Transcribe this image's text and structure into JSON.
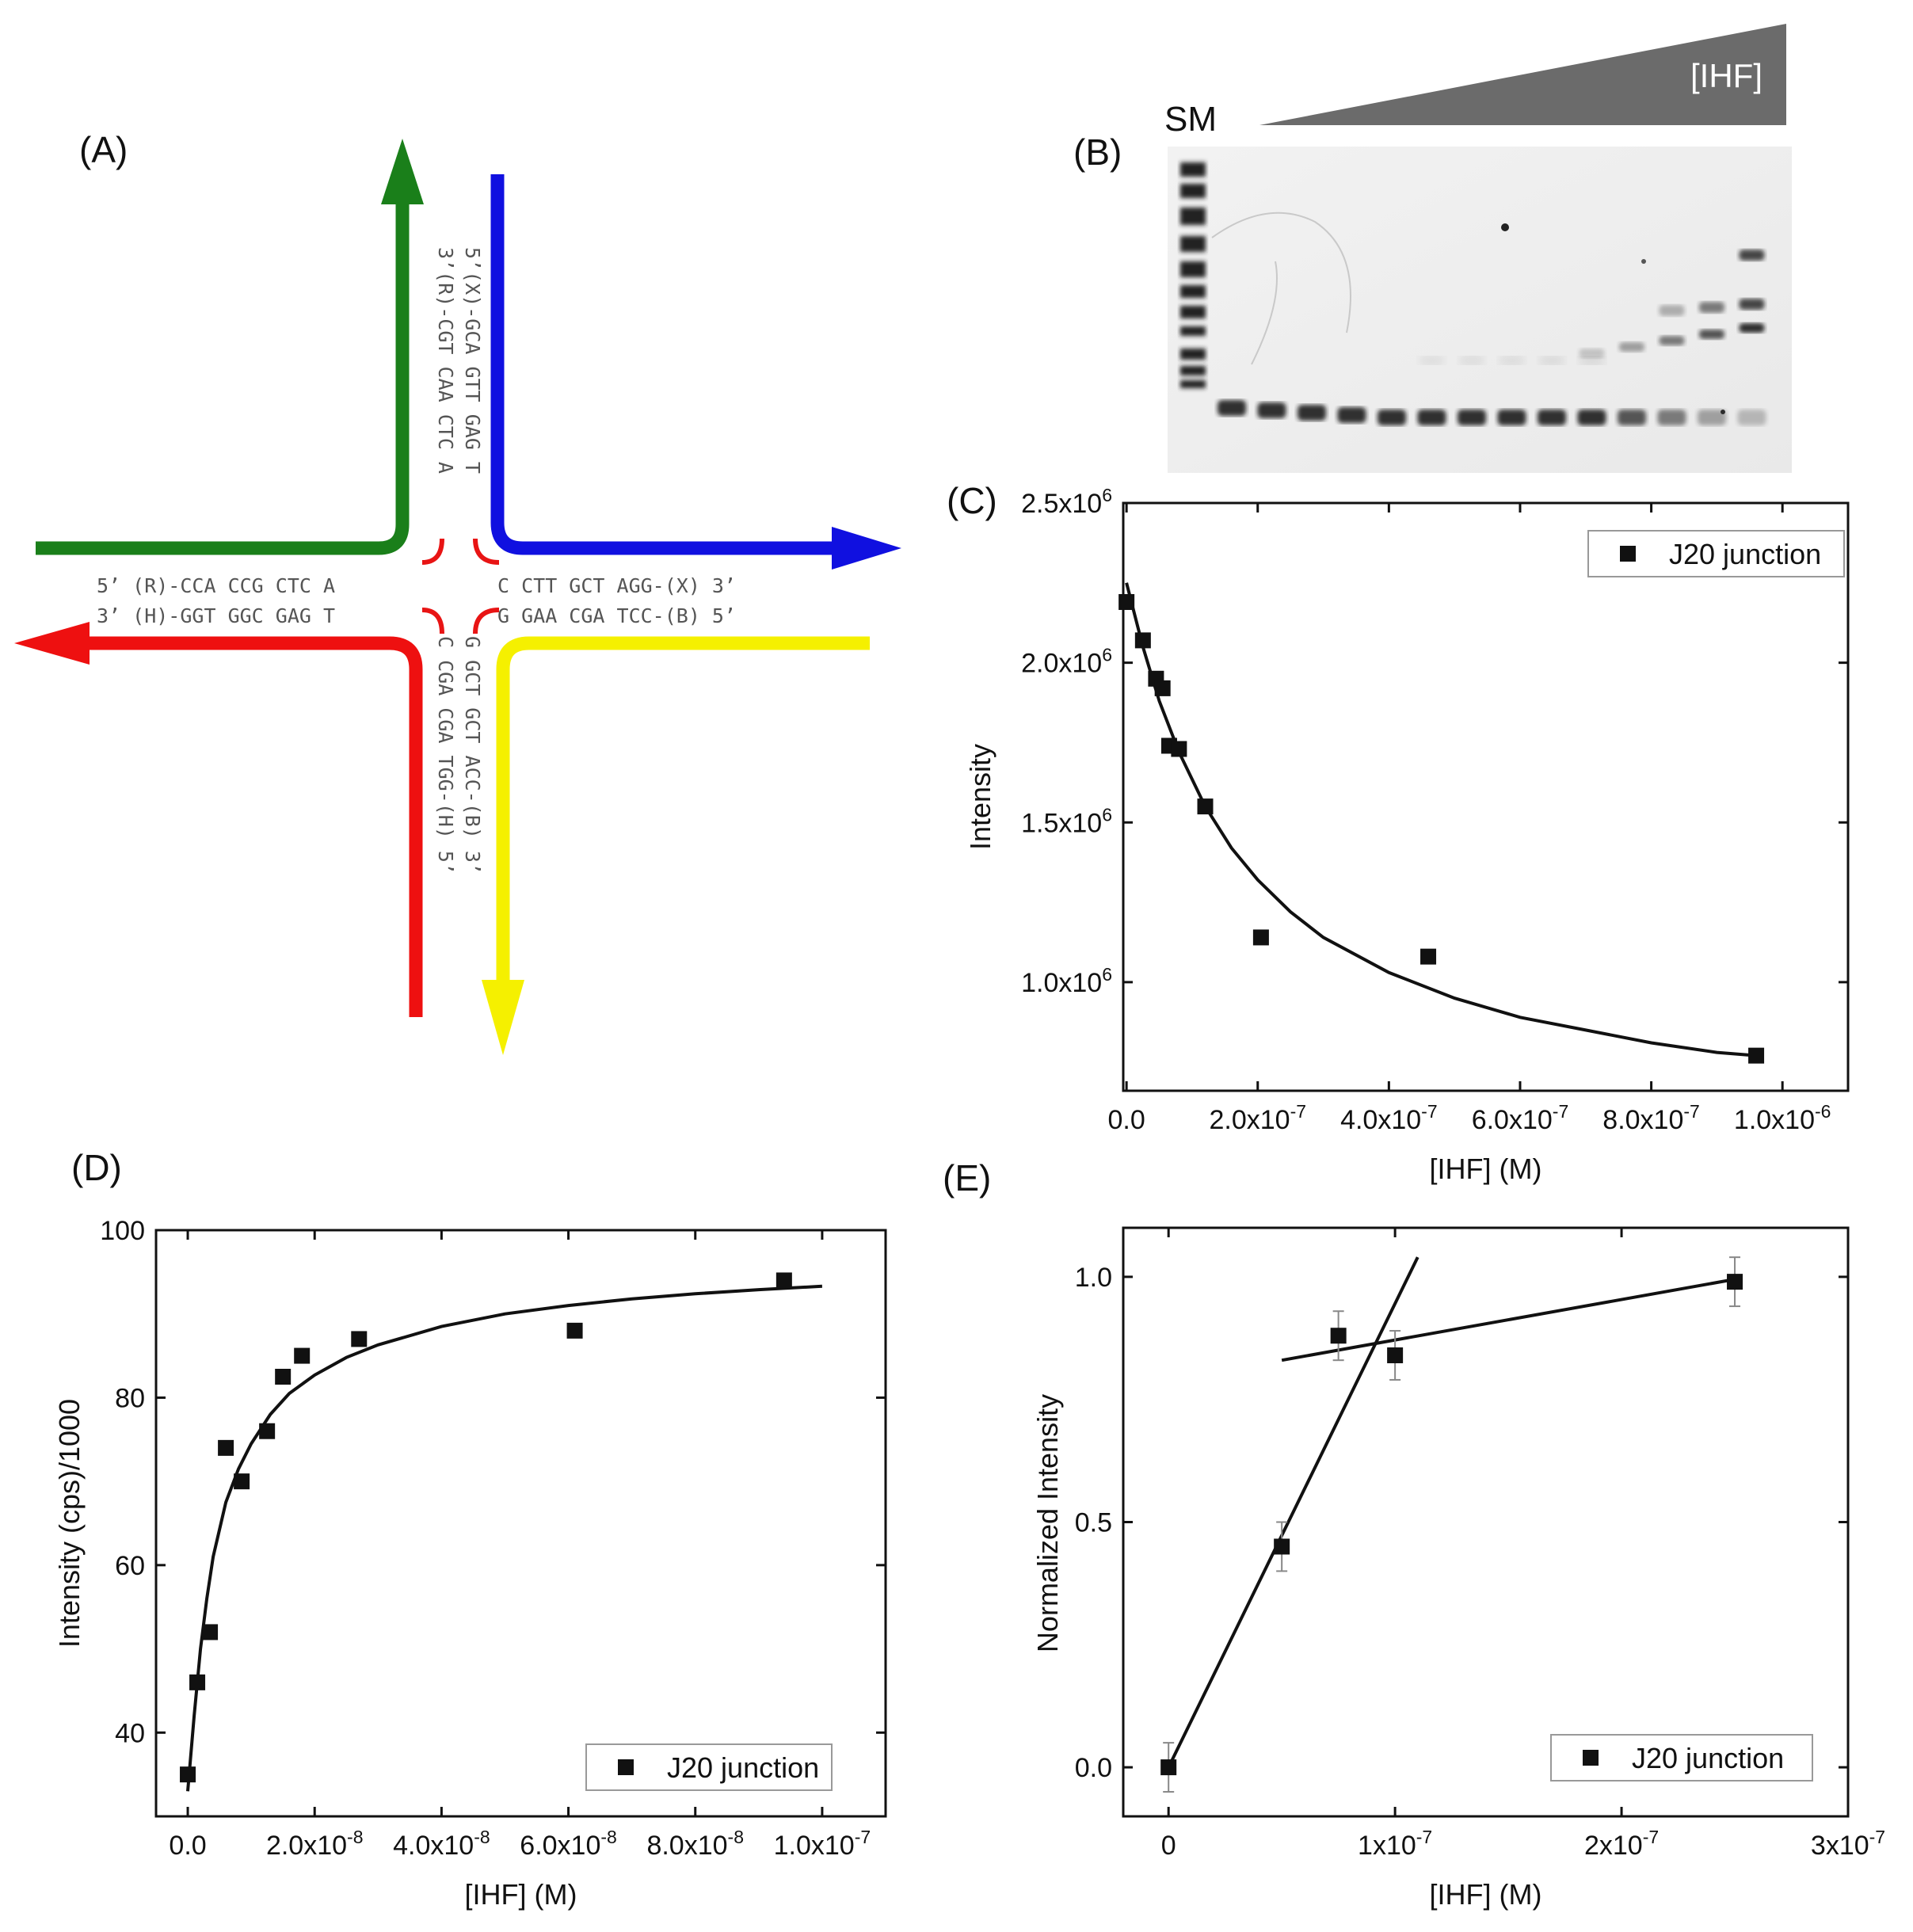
{
  "panels": {
    "A": {
      "label": "(A)",
      "colors": {
        "green": "#1a7f1a",
        "blue": "#1010e0",
        "red": "#ee1010",
        "yellow": "#f5f000",
        "junction": "#e81414"
      },
      "vertical_top_left": "3’(R)-CGT CAA CTC A",
      "vertical_top_right": "5’(X)-GCA GTT GAG T",
      "horizontal_top": "5’ (R)-CCA CCG CTC A",
      "horizontal_top_right": "C CTT GCT AGG-(X) 3’",
      "horizontal_bottom": "3’ (H)-GGT GGC GAG T",
      "horizontal_bottom_right": "G GAA CGA TCC-(B) 5’",
      "vertical_bottom_left": "C CGA CGA TGG-(H) 5’",
      "vertical_bottom_right": "G GCT GCT ACC-(B) 3’"
    },
    "B": {
      "label": "(B)",
      "marker_label": "SM",
      "gradient_label": "[IHF]",
      "lanes": 14,
      "gradient_color": "#6b6b6b"
    }
  },
  "chart_data": [
    {
      "id": "C",
      "panel_label": "(C)",
      "type": "scatter",
      "xlabel": "[IHF] (M)",
      "ylabel": "Intensity",
      "xlim": [
        -5e-09,
        1.1e-06
      ],
      "ylim": [
        660000.0,
        2500000.0
      ],
      "xticks": [
        0,
        2e-07,
        4e-07,
        6e-07,
        8e-07,
        1e-06
      ],
      "xtick_labels": [
        {
          "m": "0.0",
          "e": ""
        },
        {
          "m": "2.0x10",
          "e": "-7"
        },
        {
          "m": "4.0x10",
          "e": "-7"
        },
        {
          "m": "6.0x10",
          "e": "-7"
        },
        {
          "m": "8.0x10",
          "e": "-7"
        },
        {
          "m": "1.0x10",
          "e": "-6"
        }
      ],
      "yticks": [
        1000000.0,
        1500000.0,
        2000000.0,
        2500000.0
      ],
      "ytick_labels": [
        {
          "m": "1.0x10",
          "e": "6"
        },
        {
          "m": "1.5x10",
          "e": "6"
        },
        {
          "m": "2.0x10",
          "e": "6"
        },
        {
          "m": "2.5x10",
          "e": "6"
        }
      ],
      "legend": "J20 junction",
      "legend_position": "top-right",
      "series": [
        {
          "name": "J20 junction",
          "x": [
            0,
            2.5e-08,
            4.5e-08,
            5.5e-08,
            6.5e-08,
            8e-08,
            1.2e-07,
            2.05e-07,
            4.6e-07,
            9.6e-07
          ],
          "y": [
            2190000.0,
            2070000.0,
            1950000.0,
            1920000.0,
            1740000.0,
            1730000.0,
            1550000.0,
            1140000.0,
            1080000.0,
            770000.0
          ]
        }
      ],
      "fit": {
        "x": [
          0,
          2.5e-08,
          5e-08,
          8e-08,
          1.2e-07,
          1.6e-07,
          2e-07,
          2.5e-07,
          3e-07,
          4e-07,
          5e-07,
          6e-07,
          7e-07,
          8e-07,
          9e-07,
          9.6e-07
        ],
        "y": [
          2250000.0,
          2050000.0,
          1880000.0,
          1720000.0,
          1550000.0,
          1420000.0,
          1320000.0,
          1220000.0,
          1140000.0,
          1030000.0,
          950000.0,
          890000.0,
          850000.0,
          810000.0,
          780000.0,
          770000.0
        ]
      }
    },
    {
      "id": "D",
      "panel_label": "(D)",
      "type": "scatter",
      "xlabel": "[IHF] (M)",
      "ylabel": "Intensity (cps)/1000",
      "xlim": [
        -5e-09,
        1.1e-07
      ],
      "ylim": [
        30,
        100
      ],
      "xticks": [
        0,
        2e-08,
        4e-08,
        6e-08,
        8e-08,
        1e-07
      ],
      "xtick_labels": [
        {
          "m": "0.0",
          "e": ""
        },
        {
          "m": "2.0x10",
          "e": "-8"
        },
        {
          "m": "4.0x10",
          "e": "-8"
        },
        {
          "m": "6.0x10",
          "e": "-8"
        },
        {
          "m": "8.0x10",
          "e": "-8"
        },
        {
          "m": "1.0x10",
          "e": "-7"
        }
      ],
      "yticks": [
        40,
        60,
        80,
        100
      ],
      "ytick_labels": [
        {
          "m": "40",
          "e": ""
        },
        {
          "m": "60",
          "e": ""
        },
        {
          "m": "80",
          "e": ""
        },
        {
          "m": "100",
          "e": ""
        }
      ],
      "legend": "J20 junction",
      "legend_position": "bottom-right",
      "series": [
        {
          "name": "J20 junction",
          "x": [
            0,
            1.5e-09,
            3.5e-09,
            6e-09,
            8.5e-09,
            1.25e-08,
            1.5e-08,
            1.8e-08,
            2.7e-08,
            6.1e-08,
            9.4e-08
          ],
          "y": [
            35,
            46,
            52,
            74,
            70,
            76,
            82.5,
            85,
            87,
            88,
            94
          ]
        }
      ],
      "fit": {
        "x": [
          0,
          1e-09,
          2e-09,
          3e-09,
          4e-09,
          6e-09,
          8e-09,
          1e-08,
          1.3e-08,
          1.6e-08,
          2e-08,
          2.5e-08,
          3e-08,
          4e-08,
          5e-08,
          6e-08,
          7e-08,
          8e-08,
          9e-08,
          1e-07
        ],
        "y": [
          33,
          42,
          50,
          56,
          61,
          67.5,
          71.5,
          74.5,
          78,
          80.5,
          82.7,
          84.8,
          86.3,
          88.5,
          90,
          91,
          91.8,
          92.4,
          92.9,
          93.3
        ]
      }
    },
    {
      "id": "E",
      "panel_label": "(E)",
      "type": "scatter",
      "xlabel": "[IHF] (M)",
      "ylabel": "Normalized Intensity",
      "xlim": [
        -2e-08,
        3e-07
      ],
      "ylim": [
        -0.1,
        1.1
      ],
      "xticks": [
        0,
        1e-07,
        2e-07,
        3e-07
      ],
      "xtick_labels": [
        {
          "m": "0",
          "e": ""
        },
        {
          "m": "1x10",
          "e": "-7"
        },
        {
          "m": "2x10",
          "e": "-7"
        },
        {
          "m": "3x10",
          "e": "-7"
        }
      ],
      "yticks": [
        0.0,
        0.5,
        1.0
      ],
      "ytick_labels": [
        {
          "m": "0.0",
          "e": ""
        },
        {
          "m": "0.5",
          "e": ""
        },
        {
          "m": "1.0",
          "e": ""
        }
      ],
      "legend": "J20 junction",
      "legend_position": "bottom-right",
      "series": [
        {
          "name": "J20 junction",
          "x": [
            0,
            5e-08,
            7.5e-08,
            1e-07,
            2.5e-07
          ],
          "y": [
            0.0,
            0.45,
            0.88,
            0.84,
            0.99
          ],
          "err": [
            0.05,
            0.05,
            0.05,
            0.05,
            0.05
          ]
        }
      ],
      "lines": [
        {
          "x": [
            0,
            1.1e-07
          ],
          "y": [
            0.0,
            1.04
          ]
        },
        {
          "x": [
            5e-08,
            2.5e-07
          ],
          "y": [
            0.83,
            0.995
          ]
        }
      ]
    }
  ]
}
